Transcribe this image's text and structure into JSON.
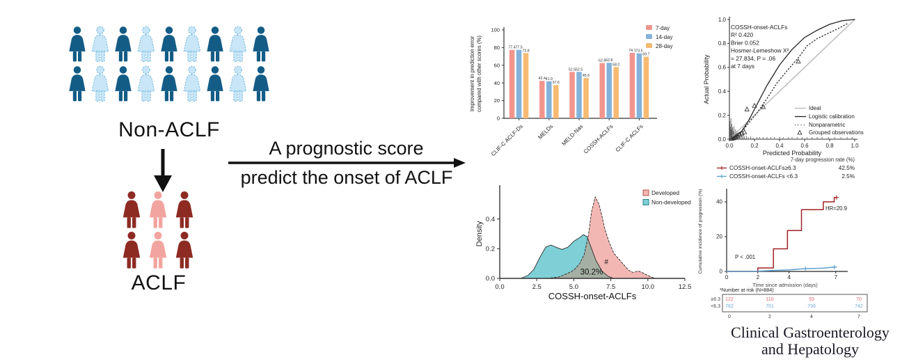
{
  "colors": {
    "person_dark_blue": "#135C86",
    "person_light_blue_fill": "#C8E6F7",
    "person_light_blue_stroke": "#79BDE1",
    "person_dark_red": "#8D2B23",
    "person_pink": "#F2A5A0",
    "arrow_black": "#111111",
    "bar_7day": "#F2958D",
    "bar_14day": "#83B2DA",
    "bar_28day": "#F6BA72",
    "density_developed": "#F3B7B3",
    "density_non_developed": "#7ED0D6",
    "density_overlap": "#A5AFA3",
    "km_red": "#A02025",
    "km_blue": "#5E9FCF",
    "risk_red_text": "#E16A79",
    "risk_blue_text": "#6FA8D4",
    "ideal_gray": "#B9B9B9",
    "journal_text": "#181824"
  },
  "left_panel": {
    "non_aclf": {
      "label": "Non-ACLF",
      "rows": 2,
      "pattern": [
        "dark",
        "light",
        "dark",
        "light",
        "dark",
        "light",
        "dark",
        "light",
        "dark"
      ]
    },
    "aclf": {
      "label": "ACLF",
      "rows": 2,
      "pattern": [
        "darkred",
        "pink",
        "darkred"
      ]
    }
  },
  "arrow": {
    "line1": "A prognostic score",
    "line2": "predict the onset of ACLF"
  },
  "journal": {
    "line1": "Clinical Gastroenterology",
    "line2": "and Hepatology"
  },
  "chart_data": [
    {
      "id": "improvement_bar",
      "type": "bar",
      "ylabel_lines": [
        "Improvement in prediction error",
        "compared with other scores (%)"
      ],
      "ylim": [
        0,
        100
      ],
      "yticks": [
        0,
        20,
        40,
        60,
        80,
        100
      ],
      "categories": [
        "CLIF-C ACLF-Ds",
        "MELDs",
        "MELD-Nas",
        "COSSH-ACLFs",
        "CLIF-C ACLFs"
      ],
      "legend_position": "top-right",
      "series": [
        {
          "name": "7-day",
          "color_key": "bar_7day",
          "values": [
            77.4,
            42.4,
            52.5,
            62.5,
            74.1
          ]
        },
        {
          "name": "14-day",
          "color_key": "bar_14day",
          "values": [
            77.5,
            41.9,
            52.5,
            62.8,
            73.5
          ]
        },
        {
          "name": "28-day",
          "color_key": "bar_28day",
          "values": [
            73.8,
            37.6,
            45.6,
            58.0,
            69.7
          ]
        }
      ]
    },
    {
      "id": "calibration",
      "type": "line",
      "stats_lines": [
        "COSSH-onset-ACLFs",
        "R²    0.420",
        "Brier 0.052",
        "Hosmer-Lemeshow X²",
        "= 27.834, P = .06",
        "at 7 days"
      ],
      "xlabel": "Predicted Probability",
      "ylabel": "Actual Probability",
      "xlim": [
        0,
        1
      ],
      "ylim": [
        0,
        1
      ],
      "xticks": [
        0,
        0.2,
        0.4,
        0.6,
        0.8,
        1.0
      ],
      "yticks": [
        0,
        0.2,
        0.4,
        0.6,
        0.8,
        1.0
      ],
      "legend": [
        "Ideal",
        "Logistic calibration",
        "Nonparametric",
        "Grouped observations"
      ],
      "series": [
        {
          "name": "Ideal",
          "points": [
            [
              0,
              0
            ],
            [
              1,
              1
            ]
          ]
        },
        {
          "name": "Logistic calibration",
          "points": [
            [
              0,
              0
            ],
            [
              0.05,
              0.02
            ],
            [
              0.1,
              0.07
            ],
            [
              0.15,
              0.15
            ],
            [
              0.2,
              0.25
            ],
            [
              0.3,
              0.45
            ],
            [
              0.4,
              0.62
            ],
            [
              0.5,
              0.75
            ],
            [
              0.6,
              0.85
            ],
            [
              0.7,
              0.91
            ],
            [
              0.8,
              0.96
            ],
            [
              0.9,
              0.99
            ],
            [
              1,
              1
            ]
          ]
        },
        {
          "name": "Nonparametric",
          "points": [
            [
              0,
              0
            ],
            [
              0.08,
              0.04
            ],
            [
              0.15,
              0.13
            ],
            [
              0.22,
              0.22
            ],
            [
              0.3,
              0.34
            ],
            [
              0.38,
              0.47
            ],
            [
              0.45,
              0.56
            ],
            [
              0.55,
              0.68
            ],
            [
              0.62,
              0.78
            ],
            [
              0.7,
              0.84
            ],
            [
              0.78,
              0.88
            ],
            [
              0.86,
              0.92
            ],
            [
              0.95,
              0.97
            ]
          ]
        },
        {
          "name": "Grouped observations",
          "points": [
            [
              0.02,
              0.005
            ],
            [
              0.035,
              0.01
            ],
            [
              0.05,
              0.02
            ],
            [
              0.065,
              0.03
            ],
            [
              0.08,
              0.04
            ],
            [
              0.1,
              0.05
            ],
            [
              0.12,
              0.06
            ],
            [
              0.14,
              0.25
            ],
            [
              0.2,
              0.28
            ],
            [
              0.27,
              0.27
            ],
            [
              0.55,
              0.65
            ]
          ]
        }
      ],
      "rug": [
        [
          0.004,
          26
        ],
        [
          0.008,
          18
        ],
        [
          0.012,
          30
        ],
        [
          0.016,
          14
        ],
        [
          0.02,
          22
        ],
        [
          0.025,
          17
        ],
        [
          0.03,
          12
        ],
        [
          0.035,
          19
        ],
        [
          0.04,
          9
        ],
        [
          0.046,
          14
        ],
        [
          0.052,
          8
        ],
        [
          0.058,
          12
        ],
        [
          0.065,
          7
        ],
        [
          0.072,
          10
        ],
        [
          0.08,
          6
        ],
        [
          0.09,
          8
        ],
        [
          0.1,
          5
        ],
        [
          0.11,
          7
        ],
        [
          0.12,
          4
        ],
        [
          0.135,
          5
        ],
        [
          0.15,
          3
        ],
        [
          0.17,
          4
        ],
        [
          0.19,
          2
        ],
        [
          0.22,
          3
        ]
      ],
      "baseline_dots": [
        0.24,
        0.27,
        0.3,
        0.33,
        0.36,
        0.4,
        0.43,
        0.47,
        0.5,
        0.54,
        0.58,
        0.62,
        0.66,
        0.7,
        0.74,
        0.79,
        0.84,
        0.89,
        0.94,
        0.98
      ]
    },
    {
      "id": "density",
      "type": "area",
      "xlabel": "COSSH-onset-ACLFs",
      "ylabel": "Density",
      "xlim": [
        0,
        12.5
      ],
      "ylim": [
        0,
        0.6
      ],
      "xticks": [
        0.0,
        2.5,
        5.0,
        7.5,
        10.0,
        12.5
      ],
      "yticks": [
        0.0,
        0.2,
        0.4
      ],
      "overlap_label": "30.2%",
      "overlap_marker": "#",
      "series": [
        {
          "name": "Developed",
          "color_key": "density_developed",
          "points": [
            [
              3.2,
              0
            ],
            [
              4,
              0.01
            ],
            [
              4.5,
              0.03
            ],
            [
              5,
              0.055
            ],
            [
              5.4,
              0.1
            ],
            [
              5.7,
              0.16
            ],
            [
              6,
              0.3
            ],
            [
              6.2,
              0.45
            ],
            [
              6.45,
              0.55
            ],
            [
              6.7,
              0.5
            ],
            [
              6.9,
              0.42
            ],
            [
              7.1,
              0.33
            ],
            [
              7.4,
              0.24
            ],
            [
              7.7,
              0.17
            ],
            [
              8,
              0.135
            ],
            [
              8.3,
              0.1
            ],
            [
              8.7,
              0.055
            ],
            [
              9,
              0.04
            ],
            [
              9.35,
              0.05
            ],
            [
              9.7,
              0.035
            ],
            [
              10.1,
              0.015
            ],
            [
              10.5,
              0
            ]
          ]
        },
        {
          "name": "Non-developed",
          "color_key": "density_non_developed",
          "points": [
            [
              1.4,
              0
            ],
            [
              1.9,
              0.02
            ],
            [
              2.3,
              0.06
            ],
            [
              2.7,
              0.14
            ],
            [
              3.1,
              0.21
            ],
            [
              3.45,
              0.225
            ],
            [
              3.8,
              0.21
            ],
            [
              4.2,
              0.195
            ],
            [
              4.6,
              0.21
            ],
            [
              5,
              0.25
            ],
            [
              5.4,
              0.275
            ],
            [
              5.65,
              0.295
            ],
            [
              5.9,
              0.28
            ],
            [
              6.2,
              0.2
            ],
            [
              6.5,
              0.12
            ],
            [
              6.9,
              0.05
            ],
            [
              7.3,
              0.015
            ],
            [
              7.7,
              0
            ]
          ]
        }
      ]
    },
    {
      "id": "cuminc",
      "type": "line",
      "legend_title": "7-day progression rate (%)",
      "groups": [
        {
          "name": "COSSH-onset-ACLFs≥6.3",
          "rate": "42.5%",
          "color_key": "km_red"
        },
        {
          "name": "COSSH-onset-ACLFs <6.3",
          "rate": "2.5%",
          "color_key": "km_blue"
        }
      ],
      "hr_label": "HR=20.9",
      "p_label": "P < .001",
      "xlabel": "Time since admission (days)",
      "ylabel": "Cumulative incidence of progression (%)",
      "xlim": [
        0,
        7.5
      ],
      "ylim": [
        0,
        46
      ],
      "xticks": [
        0,
        2,
        4,
        7
      ],
      "yticks": [
        0,
        20,
        40
      ],
      "series": [
        {
          "name": "high",
          "color_key": "km_red",
          "steps": [
            [
              0,
              0
            ],
            [
              2,
              0
            ],
            [
              2,
              2
            ],
            [
              3,
              2
            ],
            [
              3,
              13
            ],
            [
              3.9,
              13
            ],
            [
              3.9,
              23.5
            ],
            [
              4.8,
              23.5
            ],
            [
              4.8,
              35.5
            ],
            [
              6.2,
              35.5
            ],
            [
              6.2,
              40
            ],
            [
              6.9,
              40
            ],
            [
              6.9,
              42.5
            ],
            [
              7.05,
              42.5
            ]
          ],
          "censor": [
            [
              7.05,
              42.5
            ]
          ]
        },
        {
          "name": "low",
          "color_key": "km_blue",
          "steps": [
            [
              0,
              0
            ],
            [
              1.6,
              0
            ],
            [
              2.6,
              0.4
            ],
            [
              4,
              0.9
            ],
            [
              5,
              1.6
            ],
            [
              5.6,
              1.7
            ],
            [
              6.2,
              1.9
            ],
            [
              6.9,
              2.5
            ],
            [
              7.05,
              2.5
            ]
          ],
          "censor": [
            [
              5.05,
              1.6
            ],
            [
              6.9,
              2.5
            ]
          ]
        }
      ],
      "risk_table": {
        "title": "*Number at risk (N=884)",
        "row_labels": [
          "≥6.3",
          "<6.3"
        ],
        "time_points": [
          "0",
          "2",
          "4",
          "7"
        ],
        "rows": [
          [
            "122",
            "110",
            "93",
            "70"
          ],
          [
            "762",
            "751",
            "736",
            "742"
          ]
        ]
      }
    }
  ]
}
